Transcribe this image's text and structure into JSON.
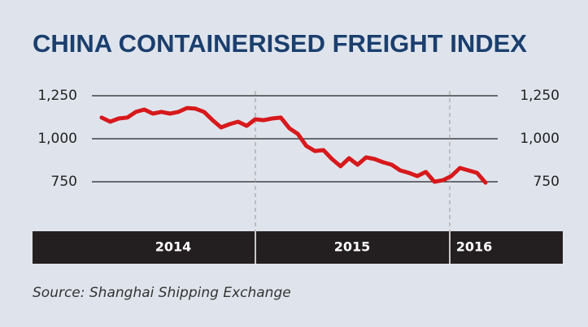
{
  "chart_data": {
    "type": "line",
    "title": "CHINA CONTAINERISED FREIGHT INDEX",
    "source": "Source: Shanghai Shipping Exchange",
    "x_groups": [
      "2014",
      "2015",
      "2016"
    ],
    "categories": [
      null,
      null,
      null,
      null,
      null,
      null,
      null,
      null,
      null,
      null,
      null,
      null,
      null,
      null,
      null,
      null,
      null,
      null,
      null,
      null,
      null,
      null,
      null,
      null,
      null,
      null,
      null,
      null,
      null,
      null,
      null,
      null,
      null,
      null,
      null,
      null,
      null,
      null,
      null,
      null,
      null,
      null,
      null,
      null,
      null,
      null
    ],
    "series": [
      {
        "name": "China Containerised Freight Index",
        "color": "#d7191c",
        "values": [
          1123,
          1099,
          1118,
          1123,
          1156,
          1170,
          1146,
          1156,
          1146,
          1156,
          1179,
          1175,
          1156,
          1108,
          1066,
          1085,
          1099,
          1075,
          1113,
          1108,
          1118,
          1123,
          1061,
          1028,
          958,
          929,
          934,
          882,
          840,
          887,
          849,
          892,
          882,
          863,
          849,
          816,
          802,
          783,
          807,
          750,
          759,
          783,
          830,
          816,
          802,
          745
        ]
      }
    ],
    "ylim": [
      650,
      1300
    ],
    "yticks": [
      {
        "value": 1250,
        "label": "1,250"
      },
      {
        "value": 1000,
        "label": "1,000"
      },
      750
    ],
    "grid": true
  }
}
